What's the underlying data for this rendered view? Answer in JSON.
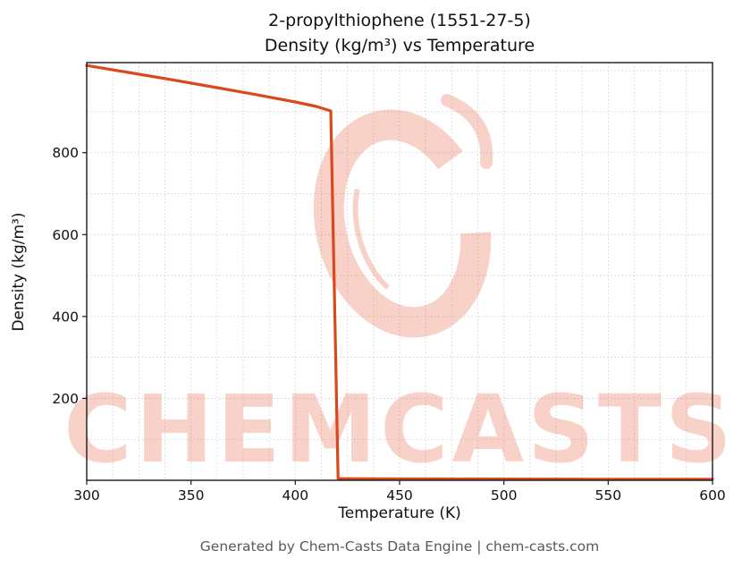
{
  "title": {
    "line1": "2-propylthiophene (1551-27-5)",
    "line2": "Density (kg/m³) vs Temperature"
  },
  "axes": {
    "xlabel": "Temperature (K)",
    "ylabel": "Density (kg/m³)"
  },
  "watermark": {
    "text": "CHEMCASTS",
    "color": "#e8694a"
  },
  "footer": {
    "text": "Generated by Chem-Casts Data Engine | chem-casts.com"
  },
  "chart_data": {
    "type": "line",
    "title": "2-propylthiophene (1551-27-5) — Density (kg/m³) vs Temperature",
    "xlabel": "Temperature (K)",
    "ylabel": "Density (kg/m³)",
    "xlim": [
      300,
      600
    ],
    "ylim": [
      0,
      1020
    ],
    "x_ticks": [
      300,
      350,
      400,
      450,
      500,
      550,
      600
    ],
    "y_ticks": [
      200,
      400,
      600,
      800
    ],
    "x_minor_step": 12.5,
    "y_minor_step": 100,
    "grid": true,
    "legend": false,
    "line_color": "#d8491d",
    "series": [
      {
        "name": "Density",
        "x": [
          300,
          320,
          340,
          360,
          380,
          400,
          410,
          417,
          420.5,
          440,
          470,
          500,
          540,
          570,
          600
        ],
        "y": [
          1013,
          996,
          979,
          961,
          943,
          924,
          913,
          902,
          4,
          3.7,
          3.3,
          3.0,
          2.7,
          2.5,
          2.3
        ]
      }
    ]
  }
}
